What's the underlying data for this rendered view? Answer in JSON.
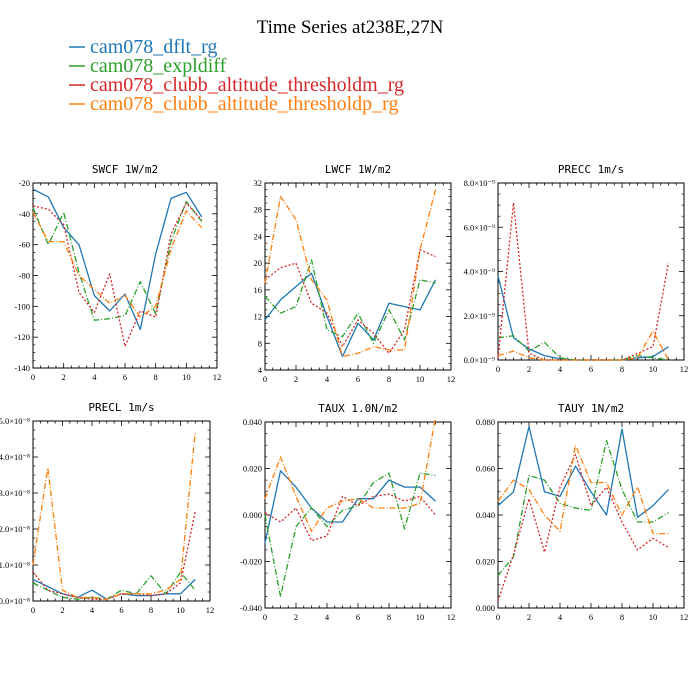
{
  "figure_title": "Time Series at238E,27N",
  "series_legend": [
    {
      "name": "cam078_dflt_rg",
      "color": "#1f77b4",
      "dash": ""
    },
    {
      "name": "cam078_expldiff",
      "color": "#2ca02c",
      "dash": "6,2,1,2"
    },
    {
      "name": "cam078_clubb_altitude_thresholdm_rg",
      "color": "#d62728",
      "dash": "2,2"
    },
    {
      "name": "cam078_clubb_altitude_thresholdp_rg",
      "color": "#ff7f0e",
      "dash": "6,2,1,2"
    }
  ],
  "chart_data": [
    {
      "type": "line",
      "title": "SWCF   1W/m2",
      "x": [
        0,
        1,
        2,
        3,
        4,
        5,
        6,
        7,
        8,
        9,
        10,
        11
      ],
      "xlim": [
        0,
        12
      ],
      "xticks": [
        0,
        2,
        4,
        6,
        8,
        10,
        12
      ],
      "ylim": [
        -140,
        -20
      ],
      "yticks": [
        -140,
        -120,
        -100,
        -80,
        -60,
        -40,
        -20
      ],
      "ytick_labels": [
        "-140",
        "-120",
        "-100",
        "-80",
        "-60",
        "-40",
        "-20"
      ],
      "series": [
        {
          "name": "cam078_dflt_rg",
          "values": [
            -24,
            -29,
            -49,
            -60,
            -93,
            -103,
            -92,
            -115,
            -66,
            -30,
            -26,
            -42
          ]
        },
        {
          "name": "cam078_expldiff",
          "values": [
            -36,
            -60,
            -39,
            -78,
            -109,
            -108,
            -106,
            -84,
            -105,
            -58,
            -32,
            -45
          ]
        },
        {
          "name": "cam078_clubb_altitude_thresholdm_rg",
          "values": [
            -35,
            -37,
            -47,
            -91,
            -104,
            -79,
            -126,
            -103,
            -107,
            -53,
            -33,
            -44
          ]
        },
        {
          "name": "cam078_clubb_altitude_thresholdp_rg",
          "values": [
            -39,
            -58,
            -58,
            -80,
            -89,
            -98,
            -93,
            -107,
            -100,
            -63,
            -38,
            -49
          ]
        }
      ]
    },
    {
      "type": "line",
      "title": "LWCF   1W/m2",
      "x": [
        0,
        1,
        2,
        3,
        4,
        5,
        6,
        7,
        8,
        9,
        10,
        11
      ],
      "xlim": [
        0,
        12
      ],
      "xticks": [
        0,
        2,
        4,
        6,
        8,
        10,
        12
      ],
      "ylim": [
        4,
        32
      ],
      "yticks": [
        4,
        8,
        12,
        16,
        20,
        24,
        28,
        32
      ],
      "ytick_labels": [
        "4",
        "8",
        "12",
        "16",
        "20",
        "24",
        "28",
        "32"
      ],
      "series": [
        {
          "name": "cam078_dflt_rg",
          "values": [
            11.5,
            14.5,
            16.5,
            18.5,
            12.0,
            6.0,
            11.0,
            8.5,
            14.0,
            13.5,
            13.0,
            17.5
          ]
        },
        {
          "name": "cam078_expldiff",
          "values": [
            15.0,
            12.5,
            13.5,
            20.5,
            10.0,
            9.0,
            12.5,
            8.0,
            13.0,
            8.5,
            17.5,
            17.0
          ]
        },
        {
          "name": "cam078_clubb_altitude_thresholdm_rg",
          "values": [
            17.5,
            19.3,
            20.0,
            14.0,
            12.5,
            7.5,
            11.5,
            9.5,
            6.5,
            10.0,
            22.0,
            21.0
          ]
        },
        {
          "name": "cam078_clubb_altitude_thresholdp_rg",
          "values": [
            17.0,
            30.0,
            26.5,
            17.5,
            14.5,
            6.0,
            6.5,
            7.5,
            7.0,
            7.0,
            22.0,
            31.0
          ]
        }
      ]
    },
    {
      "type": "line",
      "title": "PRECC   1m/s",
      "x": [
        0,
        1,
        2,
        3,
        4,
        5,
        6,
        7,
        8,
        9,
        10,
        11
      ],
      "xlim": [
        0,
        12
      ],
      "xticks": [
        0,
        2,
        4,
        6,
        8,
        10,
        12
      ],
      "ylim": [
        0,
        8e-09
      ],
      "yticks": [
        0,
        2e-09,
        4e-09,
        6e-09,
        8e-09
      ],
      "ytick_labels": [
        "0.0×10⁻⁹",
        "2.0×10⁻⁹",
        "4.0×10⁻⁹",
        "6.0×10⁻⁹",
        "8.0×10⁻⁹"
      ],
      "series": [
        {
          "name": "cam078_dflt_rg",
          "values": [
            3.8e-09,
            1e-09,
            5e-10,
            2e-10,
            5e-11,
            0.0,
            0.0,
            0.0,
            0.0,
            1e-10,
            1.5e-10,
            6e-10
          ]
        },
        {
          "name": "cam078_expldiff",
          "values": [
            1e-09,
            1.1e-09,
            4e-10,
            8e-10,
            1e-10,
            0.0,
            0.0,
            0.0,
            0.0,
            2e-10,
            1e-10,
            0.0
          ]
        },
        {
          "name": "cam078_clubb_altitude_thresholdm_rg",
          "values": [
            1e-10,
            7.1e-09,
            3e-10,
            0.0,
            0.0,
            0.0,
            0.0,
            0.0,
            0.0,
            3e-10,
            6e-10,
            4.4e-09
          ]
        },
        {
          "name": "cam078_clubb_altitude_thresholdp_rg",
          "values": [
            2e-10,
            4e-10,
            1e-10,
            0.0,
            0.0,
            0.0,
            0.0,
            0.0,
            0.0,
            1e-10,
            1.3e-09,
            0.0
          ]
        }
      ]
    },
    {
      "type": "line",
      "title": "PRECL   1m/s",
      "x": [
        0,
        1,
        2,
        3,
        4,
        5,
        6,
        7,
        8,
        9,
        10,
        11
      ],
      "xlim": [
        0,
        12
      ],
      "xticks": [
        0,
        2,
        4,
        6,
        8,
        10,
        12
      ],
      "ylim": [
        0,
        5e-08
      ],
      "yticks": [
        0,
        1e-08,
        2e-08,
        3e-08,
        4e-08,
        5e-08
      ],
      "ytick_labels": [
        "0.0×10⁻⁸",
        "1.0×10⁻⁸",
        "2.0×10⁻⁸",
        "3.0×10⁻⁸",
        "4.0×10⁻⁸",
        "5.0×10⁻⁸"
      ],
      "series": [
        {
          "name": "cam078_dflt_rg",
          "values": [
            6e-09,
            4e-09,
            2e-09,
            1e-09,
            3e-09,
            5e-10,
            2e-09,
            1.5e-09,
            1.5e-09,
            2e-09,
            2e-09,
            6e-09
          ]
        },
        {
          "name": "cam078_expldiff",
          "values": [
            5e-09,
            3e-09,
            1e-09,
            5e-10,
            1e-09,
            5e-10,
            3e-09,
            2e-09,
            7e-09,
            2e-09,
            8e-09,
            3e-09
          ]
        },
        {
          "name": "cam078_clubb_altitude_thresholdm_rg",
          "values": [
            8e-09,
            3e-09,
            2e-09,
            1e-09,
            5e-10,
            5e-10,
            2e-09,
            2e-09,
            1.5e-09,
            2e-09,
            5e-09,
            2.5e-08
          ]
        },
        {
          "name": "cam078_clubb_altitude_thresholdp_rg",
          "values": [
            1e-08,
            3.7e-08,
            3e-09,
            1e-09,
            1e-09,
            5e-10,
            2e-09,
            2e-09,
            2e-09,
            3e-09,
            6e-09,
            4.7e-08
          ]
        }
      ]
    },
    {
      "type": "line",
      "title": "TAUX   1.0N/m2",
      "x": [
        0,
        1,
        2,
        3,
        4,
        5,
        6,
        7,
        8,
        9,
        10,
        11
      ],
      "xlim": [
        0,
        12
      ],
      "xticks": [
        0,
        2,
        4,
        6,
        8,
        10,
        12
      ],
      "ylim": [
        -0.04,
        0.04
      ],
      "yticks": [
        -0.04,
        -0.02,
        0,
        0.02,
        0.04
      ],
      "ytick_labels": [
        "-0.040",
        "-0.020",
        "0.000",
        "0.020",
        "0.040"
      ],
      "series": [
        {
          "name": "cam078_dflt_rg",
          "values": [
            -0.012,
            0.019,
            0.012,
            0.003,
            -0.003,
            -0.003,
            0.007,
            0.007,
            0.015,
            0.012,
            0.012,
            0.006
          ]
        },
        {
          "name": "cam078_expldiff",
          "values": [
            0.0,
            -0.035,
            -0.005,
            0.003,
            -0.005,
            0.002,
            0.004,
            0.014,
            0.018,
            -0.006,
            0.018,
            0.017
          ]
        },
        {
          "name": "cam078_clubb_altitude_thresholdm_rg",
          "values": [
            0.001,
            -0.003,
            0.003,
            -0.011,
            -0.009,
            0.008,
            0.004,
            0.008,
            0.009,
            0.006,
            0.008,
            0.0
          ]
        },
        {
          "name": "cam078_clubb_altitude_thresholdp_rg",
          "values": [
            0.007,
            0.025,
            0.008,
            -0.007,
            0.003,
            0.006,
            0.007,
            0.003,
            0.003,
            0.003,
            0.005,
            0.042
          ]
        }
      ]
    },
    {
      "type": "line",
      "title": "TAUY   1N/m2",
      "x": [
        0,
        1,
        2,
        3,
        4,
        5,
        6,
        7,
        8,
        9,
        10,
        11
      ],
      "xlim": [
        0,
        12
      ],
      "xticks": [
        0,
        2,
        4,
        6,
        8,
        10,
        12
      ],
      "ylim": [
        0,
        0.08
      ],
      "yticks": [
        0,
        0.02,
        0.04,
        0.06,
        0.08
      ],
      "ytick_labels": [
        "0.000",
        "0.020",
        "0.040",
        "0.060",
        "0.080"
      ],
      "series": [
        {
          "name": "cam078_dflt_rg",
          "values": [
            0.044,
            0.05,
            0.078,
            0.05,
            0.048,
            0.061,
            0.05,
            0.04,
            0.077,
            0.039,
            0.044,
            0.051
          ]
        },
        {
          "name": "cam078_expldiff",
          "values": [
            0.014,
            0.022,
            0.057,
            0.055,
            0.045,
            0.043,
            0.042,
            0.072,
            0.051,
            0.037,
            0.037,
            0.041
          ]
        },
        {
          "name": "cam078_clubb_altitude_thresholdm_rg",
          "values": [
            0.003,
            0.023,
            0.047,
            0.024,
            0.052,
            0.066,
            0.044,
            0.052,
            0.037,
            0.025,
            0.03,
            0.026
          ]
        },
        {
          "name": "cam078_clubb_altitude_thresholdp_rg",
          "values": [
            0.046,
            0.055,
            0.051,
            0.04,
            0.033,
            0.07,
            0.054,
            0.054,
            0.04,
            0.052,
            0.032,
            0.032
          ]
        }
      ]
    }
  ]
}
